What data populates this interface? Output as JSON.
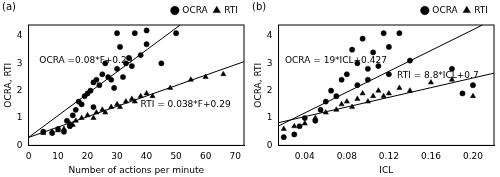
{
  "chart_data": [
    {
      "type": "scatter",
      "title": "(a)",
      "x_label": "Number of actions per minute",
      "y_label": "OCRA, RTI",
      "xlim": [
        0,
        73
      ],
      "ylim": [
        0,
        4.4
      ],
      "xticks": [
        0,
        10,
        20,
        30,
        40,
        50,
        60,
        70
      ],
      "yticks": [
        0,
        1,
        2,
        3,
        4
      ],
      "grid": false,
      "legend": "upper right",
      "series": [
        {
          "name": "OCRA",
          "color": "#000000",
          "marker": "circle",
          "x": [
            5,
            8,
            10,
            12,
            13,
            14,
            15,
            16,
            17,
            18,
            19,
            20,
            21,
            22,
            22,
            23,
            24,
            25,
            26,
            27,
            28,
            29,
            30,
            30,
            31,
            32,
            33,
            34,
            35,
            36,
            38,
            40,
            40,
            45,
            50
          ],
          "values": [
            0.5,
            0.45,
            0.6,
            0.5,
            0.9,
            0.7,
            1.1,
            1.3,
            1.6,
            1.5,
            1.8,
            1.9,
            2.0,
            2.3,
            1.4,
            2.4,
            2.2,
            2.6,
            3.0,
            2.5,
            2.4,
            2.1,
            4.1,
            2.8,
            3.6,
            2.5,
            3.0,
            3.2,
            2.9,
            4.1,
            3.3,
            4.2,
            3.7,
            3.0,
            4.1
          ]
        },
        {
          "name": "RTI",
          "color": "#000000",
          "marker": "triangle",
          "x": [
            5,
            8,
            10,
            12,
            14,
            15,
            16,
            18,
            20,
            22,
            23,
            25,
            26,
            28,
            30,
            31,
            33,
            35,
            36,
            38,
            40,
            42,
            48,
            55,
            60,
            66
          ],
          "values": [
            0.45,
            0.5,
            0.55,
            0.6,
            0.8,
            0.75,
            0.9,
            1.0,
            1.1,
            1.0,
            1.2,
            1.3,
            1.2,
            1.4,
            1.5,
            1.4,
            1.6,
            1.7,
            1.6,
            1.8,
            1.9,
            1.8,
            2.1,
            2.4,
            2.5,
            2.6
          ]
        }
      ],
      "trend_lines": [
        {
          "label": "OCRA =0.08*F+0.29",
          "color": "#000000",
          "line_style": "solid",
          "x": [
            0,
            52
          ],
          "values": [
            0.29,
            4.45
          ]
        },
        {
          "label": "RTI = 0.038*F+0.29",
          "color": "#000000",
          "line_style": "solid",
          "x": [
            0,
            73
          ],
          "values": [
            0.29,
            3.06
          ]
        }
      ]
    },
    {
      "type": "scatter",
      "title": "(b)",
      "x_label": "ICL",
      "y_label": "OCRA, RTI",
      "xlim": [
        0.015,
        0.22
      ],
      "ylim": [
        0,
        4.4
      ],
      "xticks": [
        0.04,
        0.08,
        0.12,
        0.16,
        {
          "value": 0.2,
          "label": "0.20"
        }
      ],
      "yticks": [
        0,
        1,
        2,
        3,
        4
      ],
      "grid": false,
      "legend": "upper right",
      "series": [
        {
          "name": "OCRA",
          "color": "#000000",
          "marker": "circle",
          "x": [
            0.02,
            0.03,
            0.035,
            0.04,
            0.05,
            0.055,
            0.06,
            0.065,
            0.07,
            0.075,
            0.08,
            0.085,
            0.09,
            0.09,
            0.095,
            0.1,
            0.1,
            0.105,
            0.11,
            0.115,
            0.12,
            0.12,
            0.13,
            0.14,
            0.18,
            0.19,
            0.2
          ],
          "values": [
            0.3,
            0.4,
            0.7,
            1.0,
            0.9,
            1.3,
            1.6,
            2.0,
            1.8,
            2.4,
            2.6,
            3.5,
            3.0,
            2.2,
            3.9,
            2.8,
            2.4,
            3.4,
            2.9,
            4.1,
            3.6,
            2.6,
            4.1,
            3.1,
            2.8,
            1.9,
            2.2
          ]
        },
        {
          "name": "RTI",
          "color": "#000000",
          "marker": "triangle",
          "x": [
            0.02,
            0.03,
            0.04,
            0.05,
            0.06,
            0.07,
            0.075,
            0.08,
            0.085,
            0.09,
            0.095,
            0.1,
            0.105,
            0.11,
            0.115,
            0.12,
            0.13,
            0.14,
            0.16,
            0.18,
            0.2
          ],
          "values": [
            0.6,
            0.7,
            0.8,
            1.0,
            1.2,
            1.3,
            1.5,
            1.6,
            1.4,
            1.7,
            1.9,
            1.6,
            1.8,
            2.0,
            1.8,
            1.9,
            2.1,
            2.0,
            2.3,
            2.4,
            1.8
          ]
        }
      ],
      "trend_lines": [
        {
          "label": "OCRA = 19*ICL+0.427",
          "color": "#000000",
          "line_style": "solid",
          "x": [
            0.015,
            0.209
          ],
          "values": [
            0.71,
            4.4
          ]
        },
        {
          "label": "RTI = 8.8*ICL+0.7",
          "color": "#000000",
          "line_style": "solid",
          "x": [
            0.015,
            0.22
          ],
          "values": [
            0.83,
            2.64
          ]
        }
      ]
    }
  ]
}
